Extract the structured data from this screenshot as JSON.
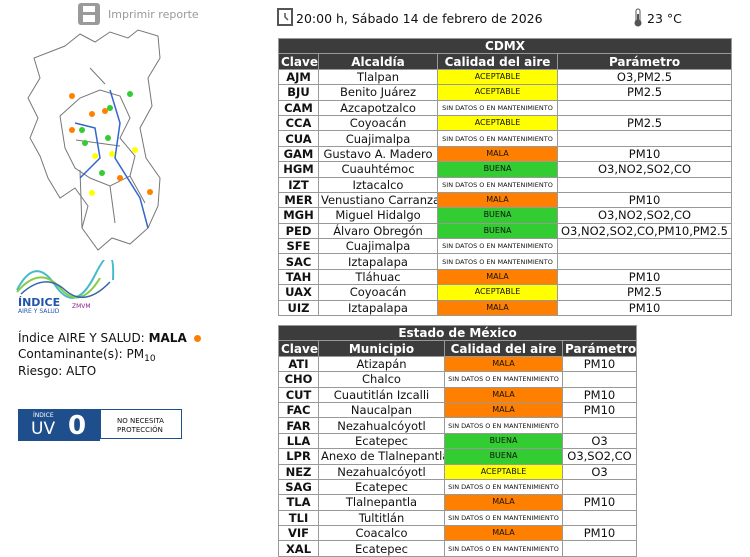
{
  "header": {
    "print": "Imprimir reporte",
    "datetime": "20:00 h, Sábado 14 de febrero de 2026",
    "temperature": "23 °C"
  },
  "logo": {
    "title": "ÍNDICE",
    "subtitle": "AIRE Y SALUD",
    "brand": "ZMVM"
  },
  "index": {
    "label": "Índice AIRE Y SALUD:",
    "value": "MALA",
    "value_color": "#ff8000",
    "pollutant_label": "Contaminante(s):",
    "pollutant": "PM",
    "pollutant_sub": "10",
    "risk": "Riesgo: ALTO"
  },
  "uv": {
    "label": "ÍNDICE",
    "name": "UV",
    "value": "0",
    "advice": "NO NECESITA PROTECCIÓN"
  },
  "status_colors": {
    "ACEPTABLE": "#ffff00",
    "MALA": "#ff8000",
    "BUENA": "#33cc33",
    "SIN DATOS O EN MANTENIMIENTO": "#ffffff"
  },
  "cdmx": {
    "title": "CDMX",
    "columns": [
      "Clave",
      "Alcaldía",
      "Calidad del aire",
      "Parámetro"
    ],
    "rows": [
      [
        "AJM",
        "Tlalpan",
        "ACEPTABLE",
        "O3,PM2.5"
      ],
      [
        "BJU",
        "Benito Juárez",
        "ACEPTABLE",
        "PM2.5"
      ],
      [
        "CAM",
        "Azcapotzalco",
        "SIN DATOS O EN MANTENIMIENTO",
        null
      ],
      [
        "CCA",
        "Coyoacán",
        "ACEPTABLE",
        "PM2.5"
      ],
      [
        "CUA",
        "Cuajimalpa",
        "SIN DATOS O EN MANTENIMIENTO",
        null
      ],
      [
        "GAM",
        "Gustavo A. Madero",
        "MALA",
        "PM10"
      ],
      [
        "HGM",
        "Cuauhtémoc",
        "BUENA",
        "O3,NO2,SO2,CO"
      ],
      [
        "IZT",
        "Iztacalco",
        "SIN DATOS O EN MANTENIMIENTO",
        null
      ],
      [
        "MER",
        "Venustiano Carranza",
        "MALA",
        "PM10"
      ],
      [
        "MGH",
        "Miguel Hidalgo",
        "BUENA",
        "O3,NO2,SO2,CO"
      ],
      [
        "PED",
        "Álvaro Obregón",
        "BUENA",
        "O3,NO2,SO2,CO,PM10,PM2.5"
      ],
      [
        "SFE",
        "Cuajimalpa",
        "SIN DATOS O EN MANTENIMIENTO",
        null
      ],
      [
        "SAC",
        "Iztapalapa",
        "SIN DATOS O EN MANTENIMIENTO",
        null
      ],
      [
        "TAH",
        "Tláhuac",
        "MALA",
        "PM10"
      ],
      [
        "UAX",
        "Coyoacán",
        "ACEPTABLE",
        "PM2.5"
      ],
      [
        "UIZ",
        "Iztapalapa",
        "MALA",
        "PM10"
      ]
    ]
  },
  "edomex": {
    "title": "Estado de México",
    "columns": [
      "Clave",
      "Municipio",
      "Calidad del aire",
      "Parámetro"
    ],
    "rows": [
      [
        "ATI",
        "Atizapán",
        "MALA",
        "PM10"
      ],
      [
        "CHO",
        "Chalco",
        "SIN DATOS O EN MANTENIMIENTO",
        null
      ],
      [
        "CUT",
        "Cuautitlán Izcalli",
        "MALA",
        "PM10"
      ],
      [
        "FAC",
        "Naucalpan",
        "MALA",
        "PM10"
      ],
      [
        "FAR",
        "Nezahualcóyotl",
        "SIN DATOS O EN MANTENIMIENTO",
        null
      ],
      [
        "LLA",
        "Ecatepec",
        "BUENA",
        "O3"
      ],
      [
        "LPR",
        "Anexo de Tlalnepantla",
        "BUENA",
        "O3,SO2,CO"
      ],
      [
        "NEZ",
        "Nezahualcóyotl",
        "ACEPTABLE",
        "O3"
      ],
      [
        "SAG",
        "Ecatepec",
        "SIN DATOS O EN MANTENIMIENTO",
        null
      ],
      [
        "TLA",
        "Tlalnepantla",
        "MALA",
        "PM10"
      ],
      [
        "TLI",
        "Tultitlán",
        "SIN DATOS O EN MANTENIMIENTO",
        null
      ],
      [
        "VIF",
        "Coacalco",
        "MALA",
        "PM10"
      ],
      [
        "XAL",
        "Ecatepec",
        "SIN DATOS O EN MANTENIMIENTO",
        null
      ]
    ]
  }
}
